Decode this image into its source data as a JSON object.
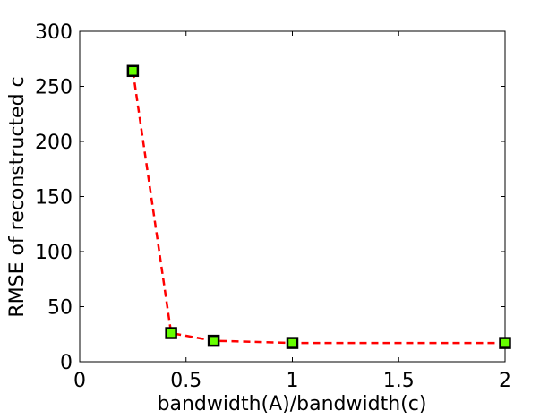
{
  "chart_data": {
    "type": "line",
    "xlabel": "bandwidth(A)/bandwidth(c)",
    "ylabel": "RMSE of reconstructed c",
    "x": [
      0.25,
      0.43,
      0.63,
      1,
      2
    ],
    "series": [
      {
        "name": "RMSE",
        "color": "#ff0000",
        "marker_color": "#66ff00",
        "values": [
          264,
          26,
          19,
          17,
          17
        ]
      }
    ],
    "xlim": [
      0,
      2
    ],
    "xticks": [
      0,
      0.5,
      1,
      1.5,
      2
    ],
    "ylim": [
      0,
      300
    ],
    "yticks": [
      0,
      50,
      100,
      150,
      200,
      250,
      300
    ],
    "grid": false
  }
}
